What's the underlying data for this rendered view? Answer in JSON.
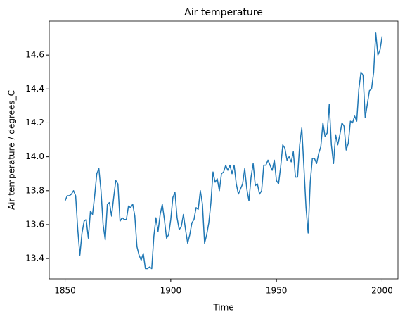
{
  "chart_data": {
    "type": "line",
    "title": "Air temperature",
    "xlabel": "Time",
    "ylabel": "Air temperature / degrees_C",
    "x": [
      1850,
      1851,
      1852,
      1853,
      1854,
      1855,
      1856,
      1857,
      1858,
      1859,
      1860,
      1861,
      1862,
      1863,
      1864,
      1865,
      1866,
      1867,
      1868,
      1869,
      1870,
      1871,
      1872,
      1873,
      1874,
      1875,
      1876,
      1877,
      1878,
      1879,
      1880,
      1881,
      1882,
      1883,
      1884,
      1885,
      1886,
      1887,
      1888,
      1889,
      1890,
      1891,
      1892,
      1893,
      1894,
      1895,
      1896,
      1897,
      1898,
      1899,
      1900,
      1901,
      1902,
      1903,
      1904,
      1905,
      1906,
      1907,
      1908,
      1909,
      1910,
      1911,
      1912,
      1913,
      1914,
      1915,
      1916,
      1917,
      1918,
      1919,
      1920,
      1921,
      1922,
      1923,
      1924,
      1925,
      1926,
      1927,
      1928,
      1929,
      1930,
      1931,
      1932,
      1933,
      1934,
      1935,
      1936,
      1937,
      1938,
      1939,
      1940,
      1941,
      1942,
      1943,
      1944,
      1945,
      1946,
      1947,
      1948,
      1949,
      1950,
      1951,
      1952,
      1953,
      1954,
      1955,
      1956,
      1957,
      1958,
      1959,
      1960,
      1961,
      1962,
      1963,
      1964,
      1965,
      1966,
      1967,
      1968,
      1969,
      1970,
      1971,
      1972,
      1973,
      1974,
      1975,
      1976,
      1977,
      1978,
      1979,
      1980,
      1981,
      1982,
      1983,
      1984,
      1985,
      1986,
      1987,
      1988,
      1989,
      1990,
      1991,
      1992,
      1993,
      1994,
      1995,
      1996,
      1997,
      1998,
      1999,
      2000
    ],
    "series": [
      {
        "color": "#1f77b4",
        "values": [
          13.74,
          13.77,
          13.77,
          13.78,
          13.8,
          13.77,
          13.57,
          13.42,
          13.55,
          13.62,
          13.63,
          13.52,
          13.68,
          13.66,
          13.77,
          13.9,
          13.93,
          13.8,
          13.6,
          13.51,
          13.72,
          13.73,
          13.65,
          13.76,
          13.86,
          13.84,
          13.62,
          13.64,
          13.63,
          13.63,
          13.71,
          13.7,
          13.72,
          13.65,
          13.47,
          13.42,
          13.39,
          13.43,
          13.34,
          13.34,
          13.35,
          13.34,
          13.53,
          13.64,
          13.56,
          13.66,
          13.72,
          13.63,
          13.52,
          13.54,
          13.63,
          13.76,
          13.79,
          13.64,
          13.57,
          13.59,
          13.66,
          13.57,
          13.49,
          13.54,
          13.61,
          13.63,
          13.7,
          13.69,
          13.8,
          13.72,
          13.49,
          13.54,
          13.61,
          13.73,
          13.91,
          13.85,
          13.87,
          13.8,
          13.9,
          13.91,
          13.95,
          13.92,
          13.95,
          13.9,
          13.95,
          13.84,
          13.78,
          13.81,
          13.84,
          13.93,
          13.81,
          13.74,
          13.88,
          13.96,
          13.83,
          13.84,
          13.78,
          13.8,
          13.95,
          13.95,
          13.98,
          13.95,
          13.92,
          13.98,
          13.86,
          13.84,
          13.94,
          14.07,
          14.05,
          13.98,
          14.0,
          13.97,
          14.03,
          13.88,
          13.88,
          14.07,
          14.17,
          13.94,
          13.7,
          13.55,
          13.85,
          13.99,
          13.99,
          13.96,
          14.02,
          14.06,
          14.2,
          14.12,
          14.14,
          14.31,
          14.07,
          13.96,
          14.13,
          14.07,
          14.13,
          14.2,
          14.18,
          14.04,
          14.08,
          14.21,
          14.2,
          14.24,
          14.21,
          14.4,
          14.5,
          14.48,
          14.23,
          14.31,
          14.39,
          14.4,
          14.5,
          14.73,
          14.6,
          14.63,
          14.71
        ]
      }
    ],
    "xlim": [
      1842.5,
      2007.5
    ],
    "xticks": [
      1850,
      1900,
      1950,
      2000
    ],
    "ylim": [
      13.28,
      14.8
    ],
    "yticks": [
      13.4,
      13.6,
      13.8,
      {
        "value": 14,
        "label": "14.0"
      },
      14.2,
      14.4,
      14.6
    ],
    "grid": false
  }
}
